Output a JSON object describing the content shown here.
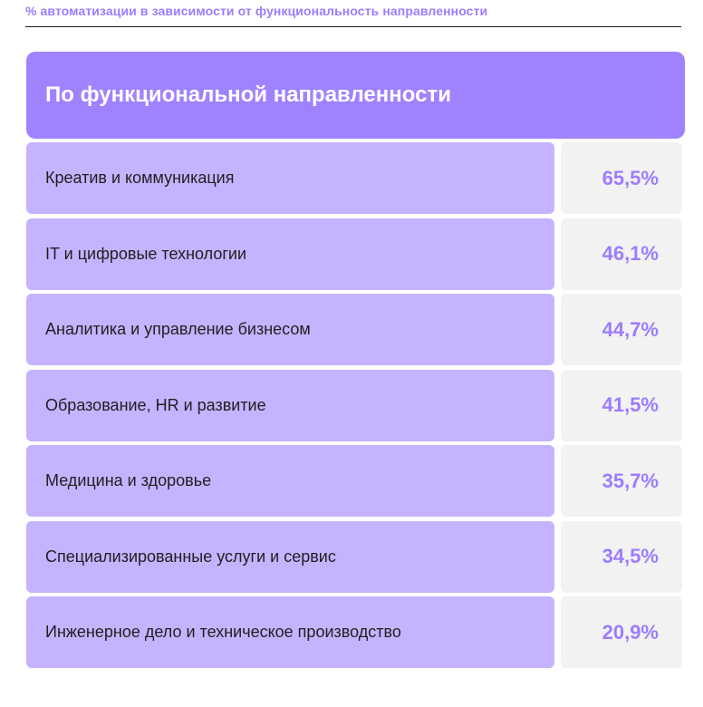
{
  "caption": "% автоматизации в зависимости от функциональность направленности",
  "table": {
    "header": "По функциональной направленности",
    "rows": [
      {
        "label": "Креатив и коммуникация",
        "value": "65,5%"
      },
      {
        "label": "IT и цифровые технологии",
        "value": "46,1%"
      },
      {
        "label": "Аналитика и управление бизнесом",
        "value": "44,7%"
      },
      {
        "label": "Образование, HR и развитие",
        "value": "41,5%"
      },
      {
        "label": "Медицина и здоровье",
        "value": "35,7%"
      },
      {
        "label": "Специализированные услуги и сервис",
        "value": "34,5%"
      },
      {
        "label": "Инженерное дело и техническое производство",
        "value": "20,9%"
      }
    ]
  },
  "colors": {
    "accent": "#a082ff",
    "accent_text": "#9d7cff",
    "row_label_bg": "#c6b3ff",
    "row_value_bg": "#f2f2f2"
  }
}
